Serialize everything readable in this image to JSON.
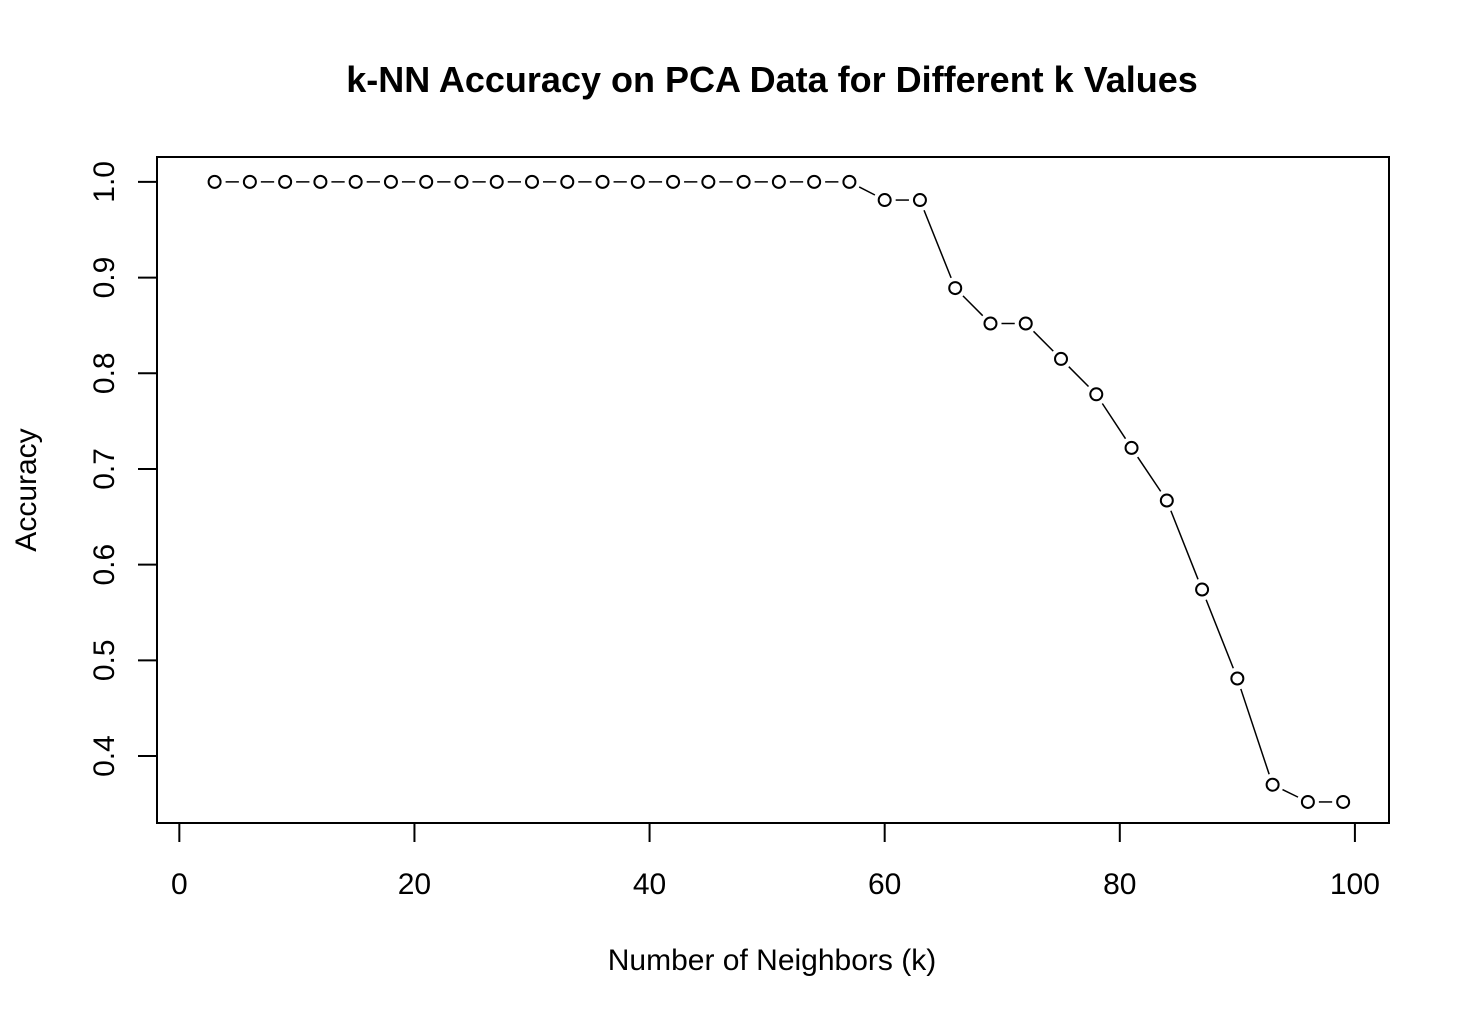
{
  "chart_data": {
    "type": "line",
    "title": "k-NN Accuracy on PCA Data for Different k Values",
    "xlabel": "Number of Neighbors (k)",
    "ylabel": "Accuracy",
    "xlim": [
      -1.9,
      102.9
    ],
    "ylim": [
      0.33,
      1.026
    ],
    "x_ticks": [
      0,
      20,
      40,
      60,
      80,
      100
    ],
    "y_ticks": [
      0.4,
      0.5,
      0.6,
      0.7,
      0.8,
      0.9,
      1.0
    ],
    "x_tick_labels": [
      "0",
      "20",
      "40",
      "60",
      "80",
      "100"
    ],
    "y_tick_labels": [
      "0.4",
      "0.5",
      "0.6",
      "0.7",
      "0.8",
      "0.9",
      "1.0"
    ],
    "grid": false,
    "series": [
      {
        "x": [
          3,
          6,
          9,
          12,
          15,
          18,
          21,
          24,
          27,
          30,
          33,
          36,
          39,
          42,
          45,
          48,
          51,
          54,
          57,
          60,
          63,
          66,
          69,
          72,
          75,
          78,
          81,
          84,
          87,
          90,
          93,
          96,
          99
        ],
        "values": [
          1.0,
          1.0,
          1.0,
          1.0,
          1.0,
          1.0,
          1.0,
          1.0,
          1.0,
          1.0,
          1.0,
          1.0,
          1.0,
          1.0,
          1.0,
          1.0,
          1.0,
          1.0,
          1.0,
          0.981,
          0.981,
          0.889,
          0.852,
          0.852,
          0.815,
          0.778,
          0.722,
          0.667,
          0.574,
          0.481,
          0.37,
          0.352,
          0.352
        ]
      }
    ]
  }
}
